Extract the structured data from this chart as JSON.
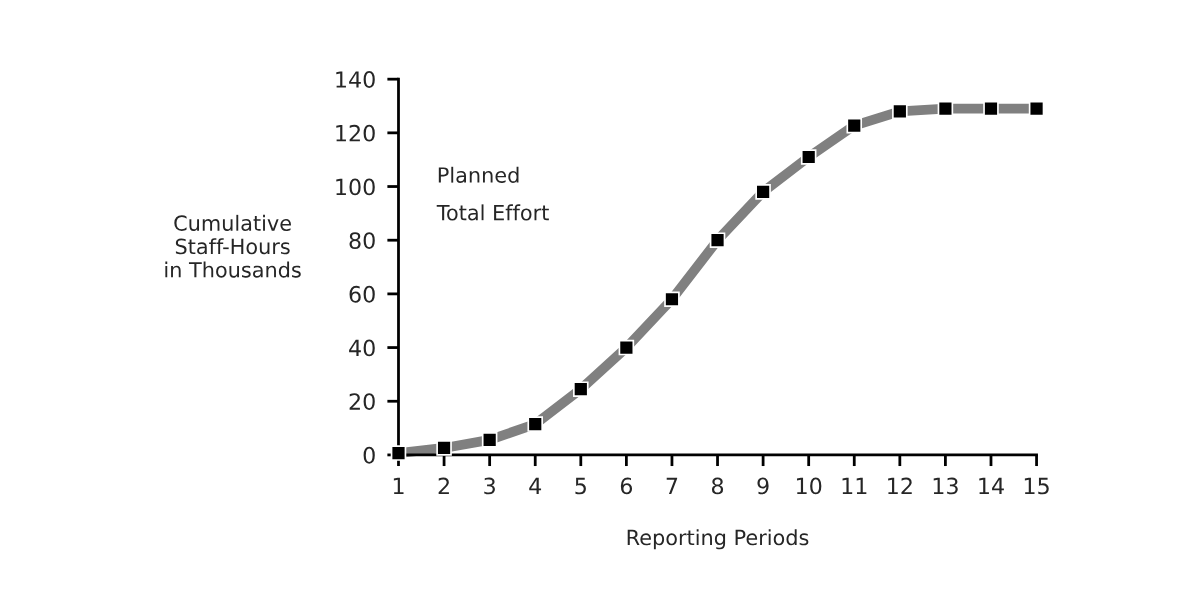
{
  "chart_data": {
    "type": "line",
    "xlabel": "Reporting Periods",
    "ylabel": "Cumulative\nStaff-Hours\nin Thousands",
    "annotations": [
      "Planned",
      "Total Effort"
    ],
    "x": [
      1,
      2,
      3,
      4,
      5,
      6,
      7,
      8,
      9,
      10,
      11,
      12,
      13,
      14,
      15
    ],
    "series": [
      {
        "color": "#808080",
        "values": [
          0.7,
          2.6,
          5.6,
          11.5,
          24.5,
          40,
          58,
          80,
          98,
          111,
          122.7,
          128,
          129,
          129,
          129
        ]
      }
    ],
    "xlim": [
      1,
      15
    ],
    "xticks": [
      1,
      2,
      3,
      4,
      5,
      6,
      7,
      8,
      9,
      10,
      11,
      12,
      13,
      14,
      15
    ],
    "ylim": [
      0,
      140
    ],
    "yticks": [
      0,
      20,
      40,
      60,
      80,
      100,
      120,
      140
    ],
    "grid": false,
    "legend": false,
    "marker": "square",
    "line_style": "solid"
  }
}
